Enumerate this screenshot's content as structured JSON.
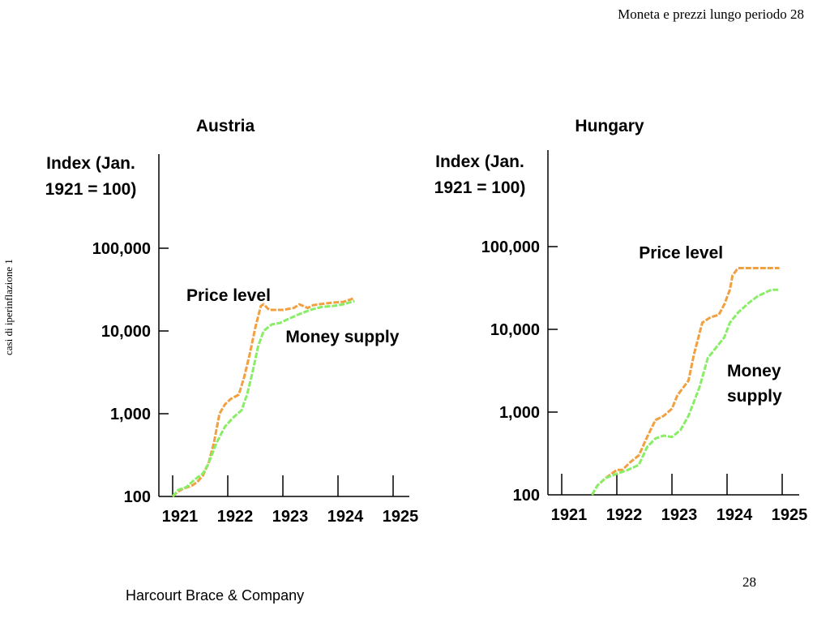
{
  "slide": {
    "header_title": "Moneta e prezzi lungo periodo  28",
    "side_note": "casi di iperinflazione 1",
    "page_number": "28",
    "publisher": "Harcourt Brace & Company"
  },
  "colors": {
    "price_level": "#f0a040",
    "money_supply": "#88ee66",
    "axis": "#000000"
  },
  "chart_data": [
    {
      "type": "line",
      "title": "Austria",
      "ylabel": "Index (Jan.\n1921 = 100)",
      "xlabel": "",
      "y_scale": "log",
      "ylim": [
        100,
        1000000
      ],
      "xlim": [
        1921,
        1925.1
      ],
      "x_ticks": [
        1921,
        1922,
        1923,
        1924,
        1925
      ],
      "x_tick_labels": [
        "1921",
        "1922",
        "1923",
        "1924",
        "1925"
      ],
      "y_ticks": [
        100,
        1000,
        10000,
        100000
      ],
      "y_tick_labels": [
        "100",
        "1,000",
        "10,000",
        "100,000"
      ],
      "grid": false,
      "series": [
        {
          "name": "Price level",
          "color_key": "price_level",
          "x": [
            1921.0,
            1921.1,
            1921.2,
            1921.35,
            1921.45,
            1921.55,
            1921.65,
            1921.75,
            1921.85,
            1921.95,
            1922.05,
            1922.2,
            1922.3,
            1922.4,
            1922.5,
            1922.6,
            1922.65,
            1922.75,
            1923.0,
            1923.2,
            1923.3,
            1923.45,
            1923.55,
            1923.65,
            1923.9,
            1924.1,
            1924.3
          ],
          "y": [
            100,
            115,
            125,
            135,
            150,
            180,
            250,
            450,
            1000,
            1300,
            1500,
            1700,
            2800,
            5300,
            11000,
            20000,
            21000,
            18000,
            18000,
            19000,
            21000,
            19000,
            20500,
            21000,
            22000,
            22500,
            25000
          ]
        },
        {
          "name": "Money supply",
          "color_key": "money_supply",
          "x": [
            1921.0,
            1921.1,
            1921.25,
            1921.4,
            1921.55,
            1921.65,
            1921.8,
            1921.95,
            1922.1,
            1922.25,
            1922.35,
            1922.45,
            1922.55,
            1922.65,
            1922.8,
            1922.95,
            1923.1,
            1923.3,
            1923.5,
            1923.7,
            1923.9,
            1924.1,
            1924.3
          ],
          "y": [
            100,
            120,
            130,
            160,
            190,
            250,
            450,
            700,
            900,
            1100,
            1700,
            3200,
            6500,
            10000,
            12000,
            12500,
            14000,
            16000,
            18000,
            19500,
            20000,
            21000,
            23000
          ]
        }
      ]
    },
    {
      "type": "line",
      "title": "Hungary",
      "ylabel": "Index (Jan.\n1921 = 100)",
      "xlabel": "",
      "y_scale": "log",
      "ylim": [
        100,
        1000000
      ],
      "xlim": [
        1921,
        1925.1
      ],
      "x_ticks": [
        1921,
        1922,
        1923,
        1924,
        1925
      ],
      "x_tick_labels": [
        "1921",
        "1922",
        "1923",
        "1924",
        "1925"
      ],
      "y_ticks": [
        100,
        1000,
        10000,
        100000
      ],
      "y_tick_labels": [
        "100",
        "1,000",
        "10,000",
        "100,000"
      ],
      "grid": false,
      "series": [
        {
          "name": "Price level",
          "color_key": "price_level",
          "x": [
            1921.55,
            1921.65,
            1921.8,
            1922.0,
            1922.1,
            1922.25,
            1922.4,
            1922.55,
            1922.7,
            1922.85,
            1923.0,
            1923.1,
            1923.3,
            1923.4,
            1923.55,
            1923.7,
            1923.85,
            1923.95,
            1924.05,
            1924.1,
            1924.2,
            1924.4,
            1924.55,
            1924.7,
            1924.85,
            1924.95
          ],
          "y": [
            100,
            130,
            160,
            200,
            200,
            250,
            300,
            500,
            800,
            900,
            1100,
            1600,
            2400,
            5000,
            12000,
            14000,
            15000,
            20000,
            30000,
            45000,
            55000,
            55000,
            55000,
            55000,
            55000,
            55000
          ]
        },
        {
          "name": "Money supply",
          "color_key": "money_supply",
          "x": [
            1921.55,
            1921.65,
            1921.8,
            1922.0,
            1922.2,
            1922.4,
            1922.55,
            1922.7,
            1922.85,
            1923.0,
            1923.15,
            1923.3,
            1923.5,
            1923.65,
            1923.8,
            1923.95,
            1924.05,
            1924.2,
            1924.4,
            1924.55,
            1924.7,
            1924.8,
            1924.95
          ],
          "y": [
            100,
            130,
            160,
            180,
            200,
            230,
            380,
            480,
            520,
            500,
            600,
            900,
            2000,
            4500,
            6000,
            8000,
            12000,
            16000,
            21000,
            25000,
            28000,
            30000,
            30000
          ]
        }
      ]
    }
  ],
  "annotations": [
    {
      "chart_index": 0,
      "text_lines": [
        "Price level"
      ],
      "x": 1921.25,
      "y": 23000
    },
    {
      "chart_index": 0,
      "text_lines": [
        "Money supply"
      ],
      "x": 1923.05,
      "y": 7300
    },
    {
      "chart_index": 1,
      "text_lines": [
        "Price level"
      ],
      "x": 1922.4,
      "y": 72000
    },
    {
      "chart_index": 1,
      "text_lines": [
        "Money",
        "supply"
      ],
      "x": 1924.0,
      "y": 2700
    }
  ]
}
